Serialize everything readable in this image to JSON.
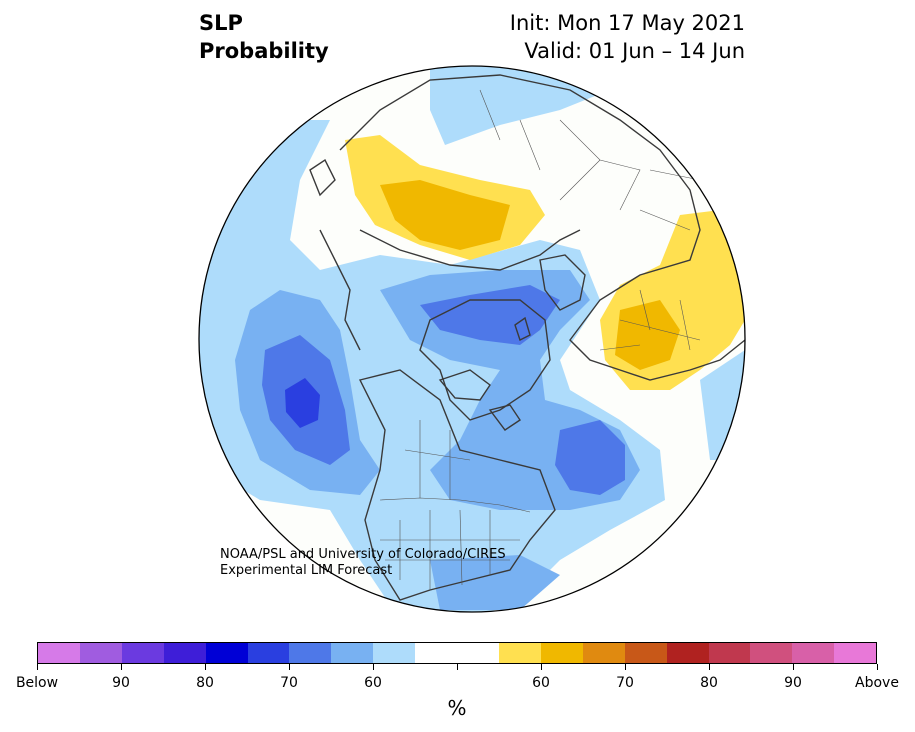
{
  "title": {
    "left_line1": "SLP",
    "left_line2": "Probability",
    "right_line1": "Init: Mon 17 May 2021",
    "right_line2": "Valid: 01 Jun – 14 Jun"
  },
  "credit": {
    "line1": "NOAA/PSL and University of Colorado/CIRES",
    "line2": "Experimental LIM Forecast"
  },
  "colorbar": {
    "colors": [
      "#d67ae8",
      "#a05ce0",
      "#6b3ae0",
      "#3e1ed8",
      "#0000d6",
      "#2a3fe0",
      "#4e78e8",
      "#78b1f2",
      "#aedcfb",
      "#ffffff",
      "#ffffff",
      "#ffe050",
      "#f0b800",
      "#e08a10",
      "#c85818",
      "#b02220",
      "#c0384e",
      "#d0507e",
      "#d860a8",
      "#e878d8"
    ],
    "tick_labels": [
      "Below",
      "90",
      "80",
      "70",
      "60",
      "",
      "60",
      "70",
      "80",
      "90",
      "Above"
    ],
    "units": "%"
  },
  "map": {
    "ocean_color": "#fdfefb",
    "coast_color": "#3a3a3a",
    "border_color": "#555555"
  }
}
